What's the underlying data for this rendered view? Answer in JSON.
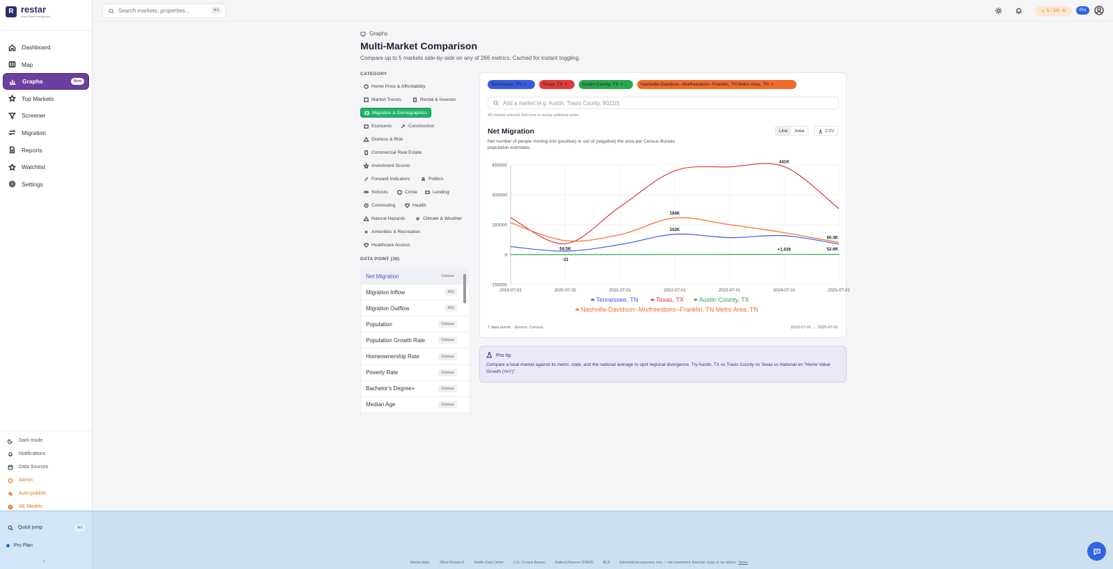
{
  "app": {
    "name": "restar",
    "tagline": "Real Estate Intelligence"
  },
  "sidebar": {
    "items": [
      {
        "label": "Dashboard"
      },
      {
        "label": "Map"
      },
      {
        "label": "Graphs",
        "badge": "New"
      },
      {
        "label": "Top Markets"
      },
      {
        "label": "Screener"
      },
      {
        "label": "Migration"
      },
      {
        "label": "Reports"
      },
      {
        "label": "Watchlist"
      },
      {
        "label": "Settings"
      }
    ],
    "bottom": [
      {
        "label": "Dark mode"
      },
      {
        "label": "Notifications"
      },
      {
        "label": "Data Sources"
      },
      {
        "label": "Admin"
      },
      {
        "label": "Auto-publish"
      },
      {
        "label": "ML Models"
      }
    ],
    "quick_jump": "Quick jump",
    "quick_jump_kbd": "⌘K",
    "plan": "Pro Plan",
    "collapse": "‹"
  },
  "topbar": {
    "search_placeholder": "Search markets, properties...",
    "search_kbd": "⌘K",
    "credits": "5 / 100",
    "credits_suffix": "AI",
    "plan_badge": "Pro"
  },
  "page": {
    "breadcrumb": "Graphs",
    "title": "Multi-Market Comparison",
    "subtitle": "Compare up to 5 markets side-by-side on any of 266 metrics. Cached for instant toggling."
  },
  "category": {
    "title": "CATEGORY",
    "items": [
      {
        "label": "Home Price & Affordability"
      },
      {
        "label": "Market Trends"
      },
      {
        "label": "Rental & Investor"
      },
      {
        "label": "Migration & Demographics"
      },
      {
        "label": "Economic"
      },
      {
        "label": "Construction"
      },
      {
        "label": "Distress & Risk"
      },
      {
        "label": "Commercial Real Estate"
      },
      {
        "label": "Investment Scores"
      },
      {
        "label": "Forward Indicators"
      },
      {
        "label": "Politics"
      },
      {
        "label": "Schools"
      },
      {
        "label": "Crime"
      },
      {
        "label": "Lending"
      },
      {
        "label": "Commuting"
      },
      {
        "label": "Health"
      },
      {
        "label": "Natural Hazards"
      },
      {
        "label": "Climate & Weather"
      },
      {
        "label": "Amenities & Recreation"
      },
      {
        "label": "Healthcare Access"
      }
    ]
  },
  "datapoints": {
    "title": "DATA POINT (39)",
    "items": [
      {
        "label": "Net Migration",
        "source": "Census"
      },
      {
        "label": "Migration Inflow",
        "source": "IRS"
      },
      {
        "label": "Migration Outflow",
        "source": "IRS"
      },
      {
        "label": "Population",
        "source": "Census"
      },
      {
        "label": "Population Growth Rate",
        "source": "Census"
      },
      {
        "label": "Homeownership Rate",
        "source": "Census"
      },
      {
        "label": "Poverty Rate",
        "source": "Census"
      },
      {
        "label": "Bachelor's Degree+",
        "source": "Census"
      },
      {
        "label": "Median Age",
        "source": "Census"
      }
    ]
  },
  "markets": {
    "selected": [
      {
        "label": "Tennessee, TN",
        "color": "#3a5be0"
      },
      {
        "label": "Texas, TX",
        "color": "#e23b3b"
      },
      {
        "label": "Austin County, TX",
        "color": "#2aa84f"
      },
      {
        "label": "Nashville-Davidson--Murfreesboro--Franklin, TN Metro Area, TN",
        "color": "#f26b2a"
      }
    ],
    "remove_glyph": "×",
    "add_placeholder": "Add a market (e.g. Austin, Travis County, 90210)",
    "selection_note": "4/5 markets selected. Add more to overlay additional series."
  },
  "chart_card": {
    "title": "Net Migration",
    "description": "Net number of people moving into (positive) or out of (negative) the area per Census Bureau population estimates.",
    "toggle": [
      "Line",
      "Area"
    ],
    "csv_label": "CSV",
    "footer_left": "7 data points · Source: Census",
    "footer_right": "2019-07-01 → 2025-07-01"
  },
  "chart_data": {
    "type": "line",
    "title": "Net Migration",
    "x": [
      "2019-07-01",
      "2020-07-01",
      "2021-07-01",
      "2022-07-01",
      "2023-07-01",
      "2024-07-01",
      "2025-07-01"
    ],
    "xticks": [
      "2019-07-01",
      "2020-07-01",
      "2021-07-01",
      "2022-07-01",
      "2023-07-01",
      "2024-07-01",
      "2025-07-01"
    ],
    "ylim": [
      -150000,
      450000
    ],
    "yticks": [
      -150000,
      0,
      150000,
      300000,
      450000
    ],
    "grid": true,
    "legend_position": "bottom",
    "series": [
      {
        "name": "Tennessee, TN",
        "color": "#3a5be0",
        "values": [
          40000,
          17000,
          50000,
          102000,
          85000,
          95000,
          52600
        ]
      },
      {
        "name": "Texas, TX",
        "color": "#e23b3b",
        "values": [
          185000,
          54500,
          240000,
          420000,
          440000,
          441000,
          230000
        ]
      },
      {
        "name": "Austin County, TX",
        "color": "#2aa84f",
        "values": [
          50,
          -31,
          200,
          600,
          800,
          1028,
          900
        ]
      },
      {
        "name": "Nashville-Davidson--Murfreesboro--Franklin, TN Metro Area, TN",
        "color": "#f26b2a",
        "values": [
          160000,
          70000,
          100000,
          184000,
          150000,
          110000,
          60400
        ]
      }
    ],
    "annotations": [
      {
        "text": "441K",
        "series": 1,
        "index": 5,
        "pos": "above"
      },
      {
        "text": "184K",
        "series": 3,
        "index": 3,
        "pos": "above"
      },
      {
        "text": "102K",
        "series": 0,
        "index": 3,
        "pos": "above"
      },
      {
        "text": "54.5K",
        "series": 1,
        "index": 1,
        "pos": "below"
      },
      {
        "text": "-31",
        "series": 2,
        "index": 1,
        "pos": "below"
      },
      {
        "text": "+1,028",
        "series": 2,
        "index": 5,
        "pos": "above"
      },
      {
        "text": "60.4K",
        "series": 3,
        "index": 6,
        "pos": "above"
      },
      {
        "text": "52.6K",
        "series": 0,
        "index": 6,
        "pos": "below"
      }
    ]
  },
  "protip": {
    "title": "Pro tip",
    "body": "Compare a local market against its metro, state, and the national average to spot regional divergence. Try Austin, TX vs Travis County vs Texas vs National on \"Home Value Growth (YoY)\"."
  },
  "footer": {
    "items": [
      "Market data:",
      "Zillow Research",
      "Redfin Data Center",
      "U.S. Census Bureau",
      "Federal Reserve (FRED)",
      "BLS",
      "Informational purposes only — not investment, financial, legal, or tax advice."
    ],
    "terms": "Terms"
  }
}
